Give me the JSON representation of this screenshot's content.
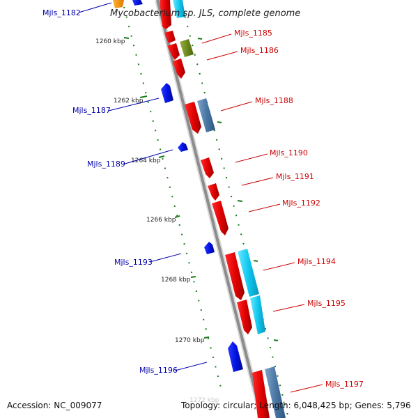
{
  "title": "Mycobacterium sp. JLS, complete genome",
  "footer": {
    "accession": "Accession: NC_009077",
    "stats": "Topology: circular; Length: 6,048,425 bp; Genes: 5,796"
  },
  "colors": {
    "forward_label": "#cc0000",
    "reverse_label": "#0000aa",
    "backbone": "#8c8c8c",
    "tick": "#1a7a1a"
  },
  "ticks": [
    {
      "label": "1260 kbp"
    },
    {
      "label": "1262 kbp"
    },
    {
      "label": "1264 kbp"
    },
    {
      "label": "1266 kbp"
    },
    {
      "label": "1268 kbp"
    },
    {
      "label": "1270 kbp"
    },
    {
      "label": "1272 kbp"
    }
  ],
  "labels": [
    {
      "text": "Mjls_1182",
      "strand": "reverse"
    },
    {
      "text": "Mjls_1185",
      "strand": "forward"
    },
    {
      "text": "Mjls_1186",
      "strand": "forward"
    },
    {
      "text": "Mjls_1187",
      "strand": "reverse"
    },
    {
      "text": "Mjls_1188",
      "strand": "forward"
    },
    {
      "text": "Mjls_1189",
      "strand": "reverse"
    },
    {
      "text": "Mjls_1190",
      "strand": "forward"
    },
    {
      "text": "Mjls_1191",
      "strand": "forward"
    },
    {
      "text": "Mjls_1192",
      "strand": "forward"
    },
    {
      "text": "Mjls_1193",
      "strand": "reverse"
    },
    {
      "text": "Mjls_1194",
      "strand": "forward"
    },
    {
      "text": "Mjls_1195",
      "strand": "forward"
    },
    {
      "text": "Mjls_1196",
      "strand": "reverse"
    },
    {
      "text": "Mjls_1197",
      "strand": "forward"
    }
  ]
}
